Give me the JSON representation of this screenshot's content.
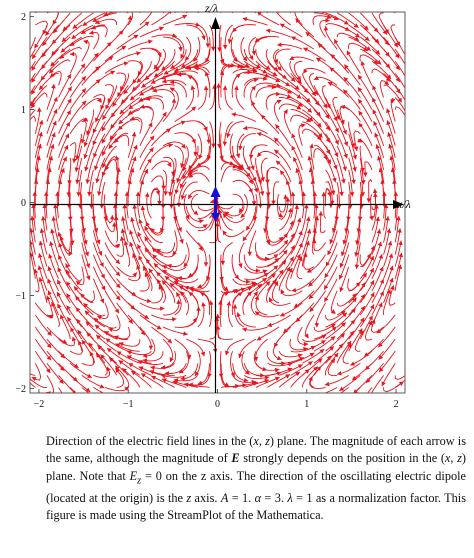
{
  "figure": {
    "x_axis_label": "x/λ",
    "z_axis_label": "z/λ",
    "chart_data": {
      "type": "streamplot",
      "xlim": [
        -2.1,
        2.1
      ],
      "ylim": [
        -2.05,
        2.05
      ],
      "x_ticks": [
        "−2",
        "−1",
        "0",
        "1",
        "2"
      ],
      "y_ticks": [
        "2",
        "1",
        "0",
        "−1",
        "−2"
      ],
      "x_tick_values": [
        -2,
        -1,
        0,
        1,
        2
      ],
      "y_tick_values": [
        2,
        1,
        0,
        -1,
        -2
      ],
      "stream_color": "#e8141c",
      "dipole_color": "#1010e0",
      "parameters": {
        "A": 1,
        "alpha": 3,
        "lambda": 1
      }
    }
  },
  "caption": {
    "p1": "Direction of the electric field lines in the (",
    "v1": "x",
    "p2": ", ",
    "v2": "z",
    "p3": ") plane. The magnitude of each arrow is the same, although the magnitude of ",
    "bold_e": "E",
    "p4": " strongly depends on the position in the (",
    "v3": "x",
    "p5": ", ",
    "v4": "z",
    "p6": ") plane. Note that ",
    "ez_sym": "E",
    "ez_sub": "z",
    "p7": " = 0 on the z axis. The direction of the oscillating electric dipole (located at the origin) is the ",
    "v5": "z",
    "p8": " axis. ",
    "a_sym": "A",
    "p9": " = 1. ",
    "alpha_sym": "α",
    "p10": " = 3. ",
    "lambda_sym": "λ",
    "p11": " = 1 as a normalization factor. This figure is made using the StreamPlot of the Mathematica."
  }
}
